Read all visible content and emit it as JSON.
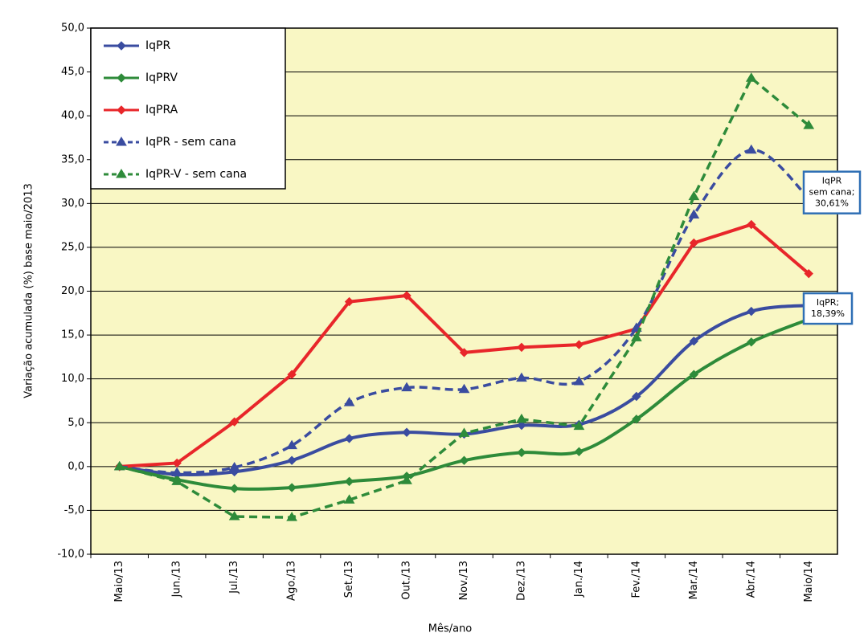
{
  "chart_data": {
    "type": "line",
    "x_label": "Mês/ano",
    "y_label": "Variação acumulada (%)  base  maio/2013",
    "categories": [
      "Maio/13",
      "Jun./13",
      "Jul./13",
      "Ago./13",
      "Set./13",
      "Out./13",
      "Nov./13",
      "Dez./13",
      "Jan./14",
      "Fev./14",
      "Mar./14",
      "Abr./14",
      "Maio/14"
    ],
    "ylim": [
      -10,
      50
    ],
    "yticks": [
      {
        "value": -10,
        "label": "-10,0"
      },
      {
        "value": -5,
        "label": "-5,0"
      },
      {
        "value": 0,
        "label": "0,0"
      },
      {
        "value": 5,
        "label": "5,0"
      },
      {
        "value": 10,
        "label": "10,0"
      },
      {
        "value": 15,
        "label": "15,0"
      },
      {
        "value": 20,
        "label": "20,0"
      },
      {
        "value": 25,
        "label": "25,0"
      },
      {
        "value": 30,
        "label": "30,0"
      },
      {
        "value": 35,
        "label": "35,0"
      },
      {
        "value": 40,
        "label": "40,0"
      },
      {
        "value": 45,
        "label": "45,0"
      },
      {
        "value": 50,
        "label": "50,0"
      }
    ],
    "grid": true,
    "legend": "upper left",
    "series": [
      {
        "name": "IqPR",
        "color": "#3a4ca0",
        "dashed": false,
        "marker": "diamond",
        "smooth": true,
        "values": [
          0,
          -0.9,
          -0.6,
          0.7,
          3.2,
          3.9,
          3.7,
          4.7,
          4.8,
          8.0,
          14.3,
          17.7,
          18.39
        ]
      },
      {
        "name": "IqPRV",
        "color": "#2e8b3a",
        "dashed": false,
        "marker": "diamond",
        "smooth": true,
        "values": [
          0,
          -1.5,
          -2.5,
          -2.4,
          -1.7,
          -1.1,
          0.7,
          1.6,
          1.7,
          5.4,
          10.5,
          14.2,
          16.8
        ]
      },
      {
        "name": "IqPRA",
        "color": "#e8262a",
        "dashed": false,
        "marker": "diamond",
        "smooth": false,
        "values": [
          0,
          0.4,
          5.1,
          10.5,
          18.8,
          19.5,
          13.0,
          13.6,
          13.9,
          15.7,
          25.5,
          27.6,
          22.0
        ]
      },
      {
        "name": "IqPR - sem cana",
        "color": "#3a4ca0",
        "dashed": true,
        "marker": "triangle",
        "smooth": true,
        "values": [
          0,
          -0.7,
          -0.1,
          2.4,
          7.3,
          9.0,
          8.8,
          10.1,
          9.7,
          15.8,
          28.7,
          36.1,
          30.61
        ]
      },
      {
        "name": "IqPR-V - sem cana",
        "color": "#2e8b3a",
        "dashed": true,
        "marker": "triangle",
        "smooth": false,
        "values": [
          0,
          -1.7,
          -5.7,
          -5.8,
          -3.8,
          -1.6,
          3.8,
          5.4,
          4.6,
          14.7,
          30.8,
          44.3,
          38.9
        ]
      }
    ],
    "annotations": [
      {
        "series": 3,
        "index": 12,
        "lines": [
          "IqPR",
          "sem cana;",
          "30,61%"
        ]
      },
      {
        "series": 0,
        "index": 12,
        "lines": [
          "IqPR;",
          "18,39%"
        ]
      }
    ]
  }
}
